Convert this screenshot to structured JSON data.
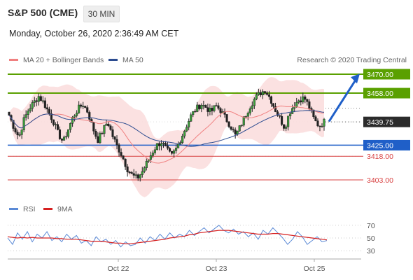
{
  "header": {
    "title": "S&P 500 (CME)",
    "timeframe": "30 MIN",
    "datetime": "Monday, October 26, 2020 2:36:49 AM CET"
  },
  "legend": {
    "ma20": "MA 20 + Bollinger Bands",
    "ma50": "MA 50",
    "credit": "Research © 2020 Trading Central",
    "rsi": "RSI",
    "rsi_ma": "9MA"
  },
  "colors": {
    "support": "#1f5fc8",
    "resistance": "#5aa000",
    "level_red": "#d84040",
    "last_price": "#2b2b2b",
    "ma20": "#f08080",
    "ma50": "#2c4c90",
    "bollinger": "#fadcdc",
    "rsi": "#5b8ad6",
    "rsi_ma": "#d62020",
    "arrow": "#1f5fc8"
  },
  "chart_data": [
    {
      "type": "candlestick",
      "x_ticks": [
        "Oct 22",
        "Oct 23",
        "Oct 25"
      ],
      "levels": [
        {
          "value": 3470.0,
          "label": "3470.00",
          "kind": "resistance"
        },
        {
          "value": 3458.0,
          "label": "3458.00",
          "kind": "resistance"
        },
        {
          "value": 3439.75,
          "label": "3439.75",
          "kind": "last"
        },
        {
          "value": 3425.0,
          "label": "3425.00",
          "kind": "support"
        },
        {
          "value": 3418.0,
          "label": "3418.00",
          "kind": "minor"
        },
        {
          "value": 3403.0,
          "label": "3403.00",
          "kind": "minor"
        }
      ],
      "indicators": [
        "MA 20 + Bollinger Bands",
        "MA 50"
      ],
      "forecast_arrow": {
        "from": 3440,
        "to": 3469
      },
      "close_path": [
        3444,
        3436,
        3430,
        3441,
        3448,
        3452,
        3456,
        3452,
        3446,
        3440,
        3432,
        3427,
        3435,
        3443,
        3448,
        3451,
        3446,
        3436,
        3428,
        3434,
        3440,
        3431,
        3424,
        3418,
        3410,
        3406,
        3404,
        3408,
        3414,
        3420,
        3425,
        3427,
        3422,
        3418,
        3423,
        3430,
        3437,
        3444,
        3448,
        3451,
        3449,
        3446,
        3450,
        3447,
        3442,
        3437,
        3431,
        3437,
        3444,
        3450,
        3455,
        3458,
        3460,
        3455,
        3448,
        3442,
        3436,
        3446,
        3451,
        3454,
        3455,
        3449,
        3441,
        3437,
        3440
      ],
      "y_range": [
        3398,
        3478
      ]
    },
    {
      "type": "line",
      "name_series": [
        "RSI",
        "9MA"
      ],
      "y_ticks": [
        "70",
        "50",
        "30"
      ],
      "ylim": [
        20,
        80
      ],
      "series": [
        {
          "name": "RSI",
          "values": [
            50,
            40,
            58,
            48,
            60,
            44,
            56,
            50,
            60,
            46,
            52,
            44,
            56,
            48,
            54,
            42,
            46,
            38,
            52,
            44,
            48,
            40,
            46,
            36,
            44,
            38,
            40,
            50,
            42,
            52,
            46,
            56,
            48,
            58,
            50,
            56,
            52,
            62,
            54,
            60,
            66,
            58,
            64,
            70,
            62,
            58,
            64,
            56,
            60,
            52,
            58,
            48,
            62,
            56,
            66,
            58,
            50,
            40,
            48,
            60,
            52,
            40,
            46,
            52,
            44,
            46
          ]
        },
        {
          "name": "9MA",
          "values": [
            52,
            51,
            50,
            51,
            50,
            51,
            50,
            50,
            50,
            50,
            49,
            49,
            48,
            48,
            48,
            47,
            46,
            45,
            45,
            45,
            44,
            43,
            42,
            42,
            41,
            41,
            42,
            43,
            44,
            45,
            46,
            47,
            48,
            50,
            51,
            52,
            53,
            55,
            56,
            58,
            59,
            60,
            61,
            62,
            62,
            62,
            61,
            60,
            59,
            58,
            57,
            56,
            56,
            56,
            57,
            57,
            56,
            55,
            54,
            53,
            52,
            51,
            50,
            49,
            48,
            47
          ]
        }
      ]
    }
  ]
}
